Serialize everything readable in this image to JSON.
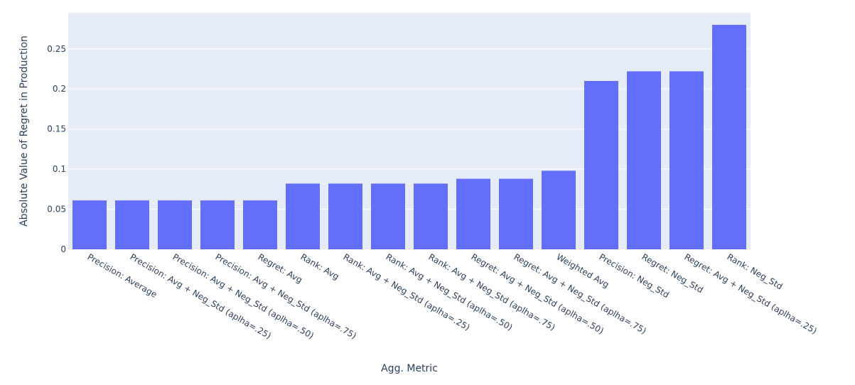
{
  "chart_data": {
    "type": "bar",
    "title": "",
    "xlabel": "Agg. Metric",
    "ylabel": "Absolute Value of Regret in Production",
    "ylim": [
      0,
      0.295
    ],
    "yticks": [
      0,
      0.05,
      0.1,
      0.15,
      0.2,
      0.25
    ],
    "ytick_labels": [
      "0",
      "0.05",
      "0.1",
      "0.15",
      "0.2",
      "0.25"
    ],
    "grid": true,
    "legend": "none",
    "categories": [
      "Precision: Average",
      "Precision: Avg + Neg_Std (aplha=.25)",
      "Precision: Avg + Neg_Std (aplha=.50)",
      "Precision: Avg + Neg_Std (aplha=.75)",
      "Regret: Avg",
      "Rank: Avg",
      "Rank: Avg + Neg_Std (aplha=.25)",
      "Rank: Avg + Neg_Std (aplha=.50)",
      "Rank: Avg + Neg_Std (aplha=.75)",
      "Regret: Avg + Neg_Std (aplha=.50)",
      "Regret: Avg + Neg_Std (aplha=.75)",
      "Weighted Avg",
      "Precision: Neg_Std",
      "Regret: Neg_Std",
      "Regret: Avg + Neg_Std (aplha=.25)",
      "Rank: Neg_Std"
    ],
    "values": [
      0.061,
      0.061,
      0.061,
      0.061,
      0.061,
      0.082,
      0.082,
      0.082,
      0.082,
      0.088,
      0.088,
      0.098,
      0.21,
      0.222,
      0.222,
      0.28
    ],
    "colors": {
      "bar": "#636efa",
      "plot_bg": "#e5ecf6",
      "grid": "#ffffff",
      "text": "#2a3f5f"
    }
  }
}
